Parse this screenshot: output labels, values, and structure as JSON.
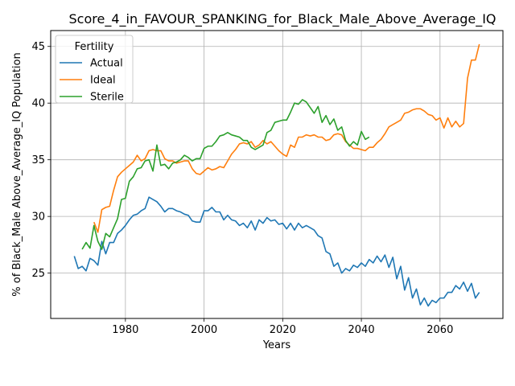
{
  "chart_data": {
    "type": "line",
    "title": "Score_4_in_FAVOUR_SPANKING_for_Black_Male_Above_Average_IQ",
    "xlabel": "Years",
    "ylabel": "% of Black_Male Above_Average_IQ Population",
    "xlim": [
      1961,
      2076
    ],
    "ylim": [
      21.0,
      46.4
    ],
    "xticks": [
      1980,
      2000,
      2020,
      2040,
      2060
    ],
    "yticks": [
      25,
      30,
      35,
      40,
      45
    ],
    "grid": true,
    "legend": {
      "title": "Fertility",
      "position": "top-left"
    },
    "series": [
      {
        "name": "Actual",
        "color": "#1f77b4",
        "x": [
          1967,
          1968,
          1969,
          1970,
          1971,
          1972,
          1973,
          1974,
          1975,
          1976,
          1977,
          1978,
          1979,
          1980,
          1981,
          1982,
          1983,
          1984,
          1985,
          1986,
          1987,
          1988,
          1989,
          1990,
          1991,
          1992,
          1993,
          1994,
          1995,
          1996,
          1997,
          1998,
          1999,
          2000,
          2001,
          2002,
          2003,
          2004,
          2005,
          2006,
          2007,
          2008,
          2009,
          2010,
          2011,
          2012,
          2013,
          2014,
          2015,
          2016,
          2017,
          2018,
          2019,
          2020,
          2021,
          2022,
          2023,
          2024,
          2025,
          2026,
          2027,
          2028,
          2029,
          2030,
          2031,
          2032,
          2033,
          2034,
          2035,
          2036,
          2037,
          2038,
          2039,
          2040,
          2041,
          2042,
          2043,
          2044,
          2045,
          2046,
          2047,
          2048,
          2049,
          2050,
          2051,
          2052,
          2053,
          2054,
          2055,
          2056,
          2057,
          2058,
          2059,
          2060,
          2061,
          2062,
          2063,
          2064,
          2065,
          2066,
          2067,
          2068,
          2069,
          2070
        ],
        "values": [
          26.5,
          25.4,
          25.6,
          25.2,
          26.3,
          26.1,
          25.7,
          27.8,
          26.7,
          27.7,
          27.7,
          28.5,
          28.8,
          29.2,
          29.7,
          30.1,
          30.2,
          30.5,
          30.7,
          31.7,
          31.5,
          31.3,
          30.9,
          30.4,
          30.7,
          30.7,
          30.5,
          30.4,
          30.2,
          30.1,
          29.6,
          29.5,
          29.5,
          30.5,
          30.5,
          30.8,
          30.4,
          30.4,
          29.7,
          30.1,
          29.7,
          29.6,
          29.2,
          29.4,
          29.0,
          29.6,
          28.8,
          29.7,
          29.4,
          29.9,
          29.6,
          29.7,
          29.3,
          29.4,
          28.9,
          29.4,
          28.8,
          29.4,
          29.0,
          29.2,
          29.0,
          28.8,
          28.3,
          28.1,
          26.9,
          26.7,
          25.6,
          25.9,
          25.0,
          25.4,
          25.2,
          25.7,
          25.5,
          25.9,
          25.6,
          26.2,
          25.9,
          26.5,
          26.0,
          26.6,
          25.5,
          26.4,
          24.5,
          25.6,
          23.5,
          24.6,
          22.8,
          23.6,
          22.2,
          22.8,
          22.1,
          22.6,
          22.4,
          22.8,
          22.8,
          23.3,
          23.3,
          23.9,
          23.6,
          24.2,
          23.4,
          24.1,
          22.8,
          23.3
        ]
      },
      {
        "name": "Ideal",
        "color": "#ff7f0e",
        "x": [
          1972,
          1973,
          1974,
          1975,
          1976,
          1977,
          1978,
          1979,
          1980,
          1981,
          1982,
          1983,
          1984,
          1985,
          1986,
          1987,
          1988,
          1989,
          1990,
          1991,
          1992,
          1993,
          1994,
          1995,
          1996,
          1997,
          1998,
          1999,
          2000,
          2001,
          2002,
          2003,
          2004,
          2005,
          2006,
          2007,
          2008,
          2009,
          2010,
          2011,
          2012,
          2013,
          2014,
          2015,
          2016,
          2017,
          2018,
          2019,
          2020,
          2021,
          2022,
          2023,
          2024,
          2025,
          2026,
          2027,
          2028,
          2029,
          2030,
          2031,
          2032,
          2033,
          2034,
          2035,
          2036,
          2037,
          2038,
          2039,
          2040,
          2041,
          2042,
          2043,
          2044,
          2045,
          2046,
          2047,
          2048,
          2049,
          2050,
          2051,
          2052,
          2053,
          2054,
          2055,
          2056,
          2057,
          2058,
          2059,
          2060,
          2061,
          2062,
          2063,
          2064,
          2065,
          2066,
          2067,
          2068,
          2069,
          2070
        ],
        "values": [
          29.5,
          28.6,
          30.6,
          30.8,
          30.9,
          32.3,
          33.5,
          33.9,
          34.2,
          34.5,
          34.8,
          35.4,
          34.9,
          35.1,
          35.8,
          35.9,
          35.8,
          35.8,
          35.1,
          34.9,
          34.9,
          34.7,
          34.8,
          34.9,
          34.9,
          34.2,
          33.8,
          33.7,
          34.0,
          34.3,
          34.1,
          34.2,
          34.4,
          34.3,
          34.9,
          35.5,
          35.9,
          36.4,
          36.5,
          36.4,
          36.6,
          36.1,
          36.3,
          36.7,
          36.4,
          36.6,
          36.2,
          35.8,
          35.5,
          35.3,
          36.3,
          36.1,
          37.0,
          37.0,
          37.2,
          37.1,
          37.2,
          37.0,
          37.0,
          36.7,
          36.8,
          37.2,
          37.3,
          37.2,
          36.6,
          36.3,
          36.0,
          36.0,
          35.9,
          35.8,
          36.1,
          36.1,
          36.5,
          36.8,
          37.3,
          37.9,
          38.1,
          38.3,
          38.5,
          39.1,
          39.2,
          39.4,
          39.5,
          39.5,
          39.3,
          39.0,
          38.9,
          38.5,
          38.7,
          37.8,
          38.7,
          37.9,
          38.4,
          37.9,
          38.2,
          42.2,
          43.8,
          43.8,
          45.2
        ]
      },
      {
        "name": "Sterile",
        "color": "#2ca02c",
        "x": [
          1969,
          1970,
          1971,
          1972,
          1973,
          1974,
          1975,
          1976,
          1977,
          1978,
          1979,
          1980,
          1981,
          1982,
          1983,
          1984,
          1985,
          1986,
          1987,
          1988,
          1989,
          1990,
          1991,
          1992,
          1993,
          1994,
          1995,
          1996,
          1997,
          1998,
          1999,
          2000,
          2001,
          2002,
          2003,
          2004,
          2005,
          2006,
          2007,
          2008,
          2009,
          2010,
          2011,
          2012,
          2013,
          2014,
          2015,
          2016,
          2017,
          2018,
          2019,
          2020,
          2021,
          2022,
          2023,
          2024,
          2025,
          2026,
          2027,
          2028,
          2029,
          2030,
          2031,
          2032,
          2033,
          2034,
          2035,
          2036,
          2037,
          2038,
          2039,
          2040,
          2041,
          2042
        ],
        "values": [
          27.1,
          27.7,
          27.2,
          29.2,
          27.8,
          27.1,
          28.5,
          28.2,
          29.0,
          29.8,
          31.5,
          31.6,
          33.1,
          33.5,
          34.2,
          34.3,
          34.9,
          35.0,
          34.0,
          36.3,
          34.5,
          34.6,
          34.2,
          34.7,
          34.8,
          35.0,
          35.4,
          35.2,
          34.9,
          35.1,
          35.1,
          36.0,
          36.2,
          36.2,
          36.6,
          37.1,
          37.2,
          37.4,
          37.2,
          37.1,
          37.0,
          36.7,
          36.7,
          36.1,
          35.9,
          36.1,
          36.3,
          37.4,
          37.6,
          38.3,
          38.4,
          38.5,
          38.5,
          39.2,
          40.0,
          39.9,
          40.3,
          40.1,
          39.6,
          39.1,
          39.7,
          38.3,
          38.9,
          38.1,
          38.6,
          37.6,
          37.9,
          36.7,
          36.2,
          36.6,
          36.3,
          37.5,
          36.8,
          37.0
        ]
      }
    ]
  }
}
